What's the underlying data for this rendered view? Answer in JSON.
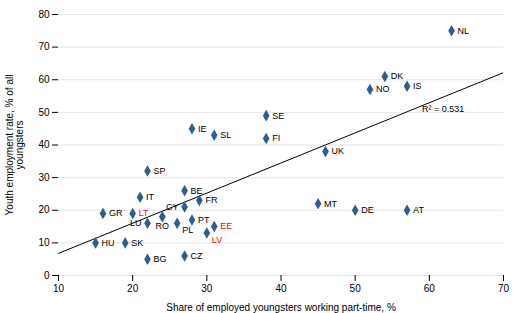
{
  "chart_data": {
    "type": "scatter",
    "xlabel": "Share of employed youngsters working part-time, %",
    "ylabel": "Youth employment rate, % of all\nyoungsters",
    "labels": [
      "NL",
      "DK",
      "IS",
      "NO",
      "SE",
      "IE",
      "SL",
      "FI",
      "UK",
      "SP",
      "BE",
      "IT",
      "FR",
      "MT",
      "CY",
      "GR",
      "LT",
      "RO",
      "DE",
      "AT",
      "PT",
      "LU",
      "PL",
      "EE",
      "LV",
      "HU",
      "SK",
      "BG",
      "CZ"
    ],
    "x": [
      63,
      54,
      57,
      52,
      38,
      28,
      31,
      38,
      46,
      22,
      27,
      21,
      29,
      45,
      27,
      16,
      20,
      24,
      50,
      57,
      28,
      22,
      26,
      31,
      30,
      15,
      19,
      22,
      27
    ],
    "values": [
      75,
      61,
      58,
      57,
      49,
      45,
      43,
      42,
      38,
      32,
      26,
      24,
      23,
      22,
      21,
      19,
      19,
      18,
      20,
      20,
      17,
      16,
      16,
      15,
      13,
      10,
      10,
      5,
      6
    ],
    "label_colors": [
      "black",
      "black",
      "black",
      "black",
      "black",
      "black",
      "black",
      "black",
      "black",
      "black",
      "black",
      "black",
      "black",
      "black",
      "black",
      "black",
      "red",
      "black",
      "black",
      "black",
      "black",
      "black",
      "black",
      "red",
      "red",
      "black",
      "black",
      "black",
      "black"
    ],
    "color": "#2E5E8E",
    "marker": "diamond",
    "trendline": {
      "x": [
        10,
        70
      ],
      "values": [
        6.784,
        62.185
      ],
      "color": "black"
    },
    "annotations": [
      {
        "text": "R² = 0.531",
        "x": 59,
        "y": 50
      }
    ],
    "xlim": [
      10,
      70
    ],
    "ylim": [
      0,
      80
    ],
    "xticks": [
      10,
      20,
      30,
      40,
      50,
      60,
      70
    ],
    "yticks": [
      0,
      10,
      20,
      30,
      40,
      50,
      60,
      70,
      80
    ],
    "grid": "y"
  }
}
